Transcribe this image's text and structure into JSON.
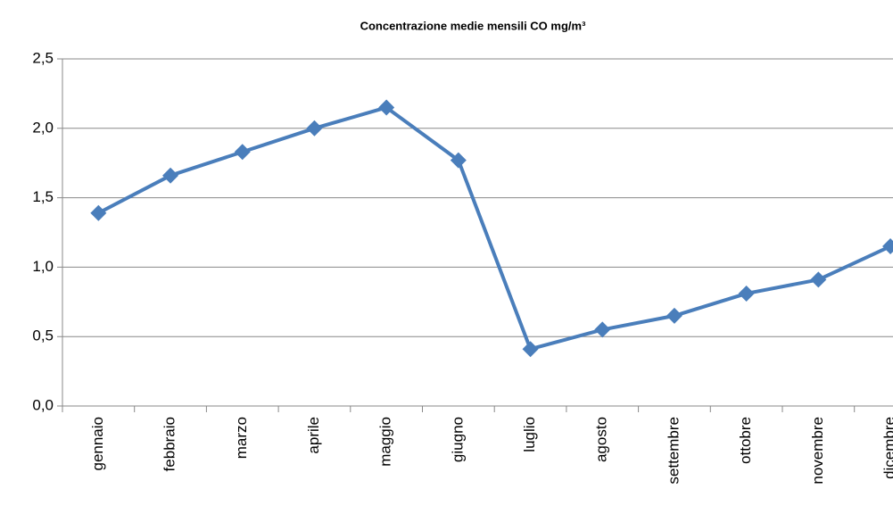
{
  "chart_data": {
    "type": "line",
    "title": "Concentrazione medie mensili CO mg/m³",
    "categories": [
      "gennaio",
      "febbraio",
      "marzo",
      "aprile",
      "maggio",
      "giugno",
      "luglio",
      "agosto",
      "settembre",
      "ottobre",
      "novembre",
      "dicembre"
    ],
    "series": [
      {
        "name": "CO",
        "color": "#4a7ebb",
        "values": [
          1.39,
          1.66,
          1.83,
          2.0,
          2.15,
          1.77,
          0.41,
          0.55,
          0.65,
          0.81,
          0.91,
          1.15
        ]
      }
    ],
    "ylim": [
      0,
      2.5
    ],
    "yticks": [
      {
        "value": 0,
        "label": "0,0"
      },
      {
        "value": 0.5,
        "label": "0,5"
      },
      {
        "value": 1,
        "label": "1,0"
      },
      {
        "value": 1.5,
        "label": "1,5"
      },
      {
        "value": 2,
        "label": "2,0"
      },
      {
        "value": 2.5,
        "label": "2,5"
      }
    ],
    "grid": true
  }
}
